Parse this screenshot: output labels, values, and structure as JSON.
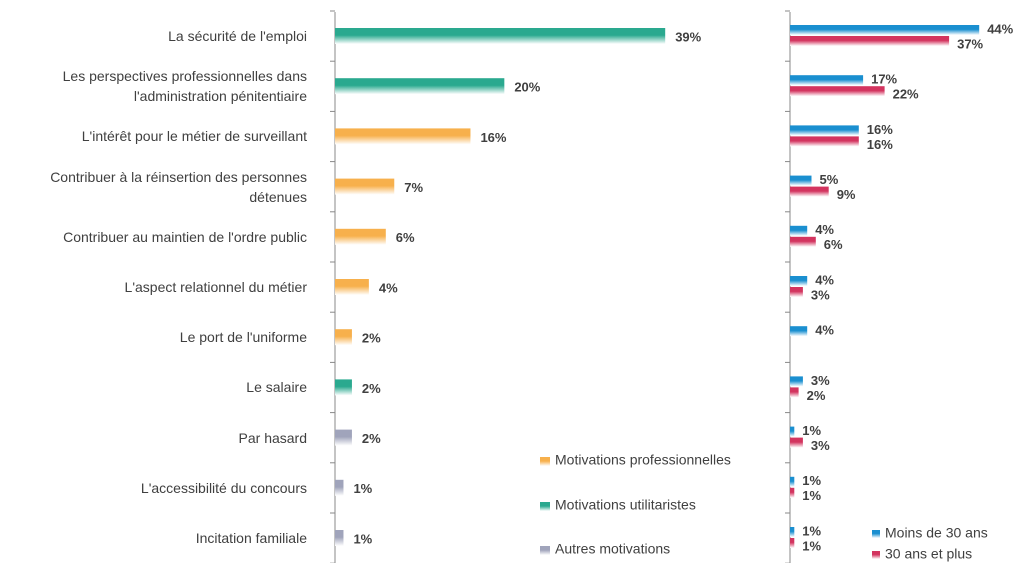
{
  "chart_data": [
    {
      "type": "bar",
      "categories": [
        "La sécurité de l'emploi",
        "Les perspectives professionnelles dans\nl'administration pénitentiaire",
        "L'intérêt pour le métier de surveillant",
        "Contribuer à la réinsertion des personnes\ndétenues",
        "Contribuer au maintien de l'ordre public",
        "L'aspect relationnel du métier",
        "Le port de l'uniforme",
        "Le salaire",
        "Par hasard",
        "L'accessibilité du concours",
        "Incitation familiale"
      ],
      "values": [
        39,
        20,
        16,
        7,
        6,
        4,
        2,
        2,
        2,
        1,
        1
      ],
      "value_labels": [
        "39%",
        "20%",
        "16%",
        "7%",
        "6%",
        "4%",
        "2%",
        "2%",
        "2%",
        "1%",
        "1%"
      ],
      "colors": [
        "#2aa98f",
        "#2aa98f",
        "#f7b04c",
        "#f7b04c",
        "#f7b04c",
        "#f7b04c",
        "#f7b04c",
        "#2aa98f",
        "#a0a4bb",
        "#a0a4bb",
        "#a0a4bb"
      ],
      "legend": [
        {
          "name": "Motivations professionnelles",
          "color": "#f7b04c"
        },
        {
          "name": "Motivations utilitaristes",
          "color": "#2aa98f"
        },
        {
          "name": "Autres motivations",
          "color": "#a0a4bb"
        }
      ],
      "xlim": [
        0,
        45
      ]
    },
    {
      "type": "grouped_bar",
      "series": [
        {
          "name": "Moins de 30 ans",
          "color": "#1a8fd0",
          "values": [
            44,
            17,
            16,
            5,
            4,
            4,
            4,
            3,
            1,
            1,
            1
          ],
          "value_labels": [
            "44%",
            "17%",
            "16%",
            "5%",
            "4%",
            "4%",
            "4%",
            "3%",
            "1%",
            "1%",
            "1%"
          ]
        },
        {
          "name": "30 ans et plus",
          "color": "#d3345f",
          "values": [
            37,
            22,
            16,
            9,
            6,
            3,
            null,
            2,
            3,
            1,
            1
          ],
          "value_labels": [
            "37%",
            "22%",
            "16%",
            "9%",
            "6%",
            "3%",
            null,
            "2%",
            "3%",
            "1%",
            "1%"
          ]
        }
      ],
      "xlim": [
        0,
        50
      ]
    }
  ]
}
